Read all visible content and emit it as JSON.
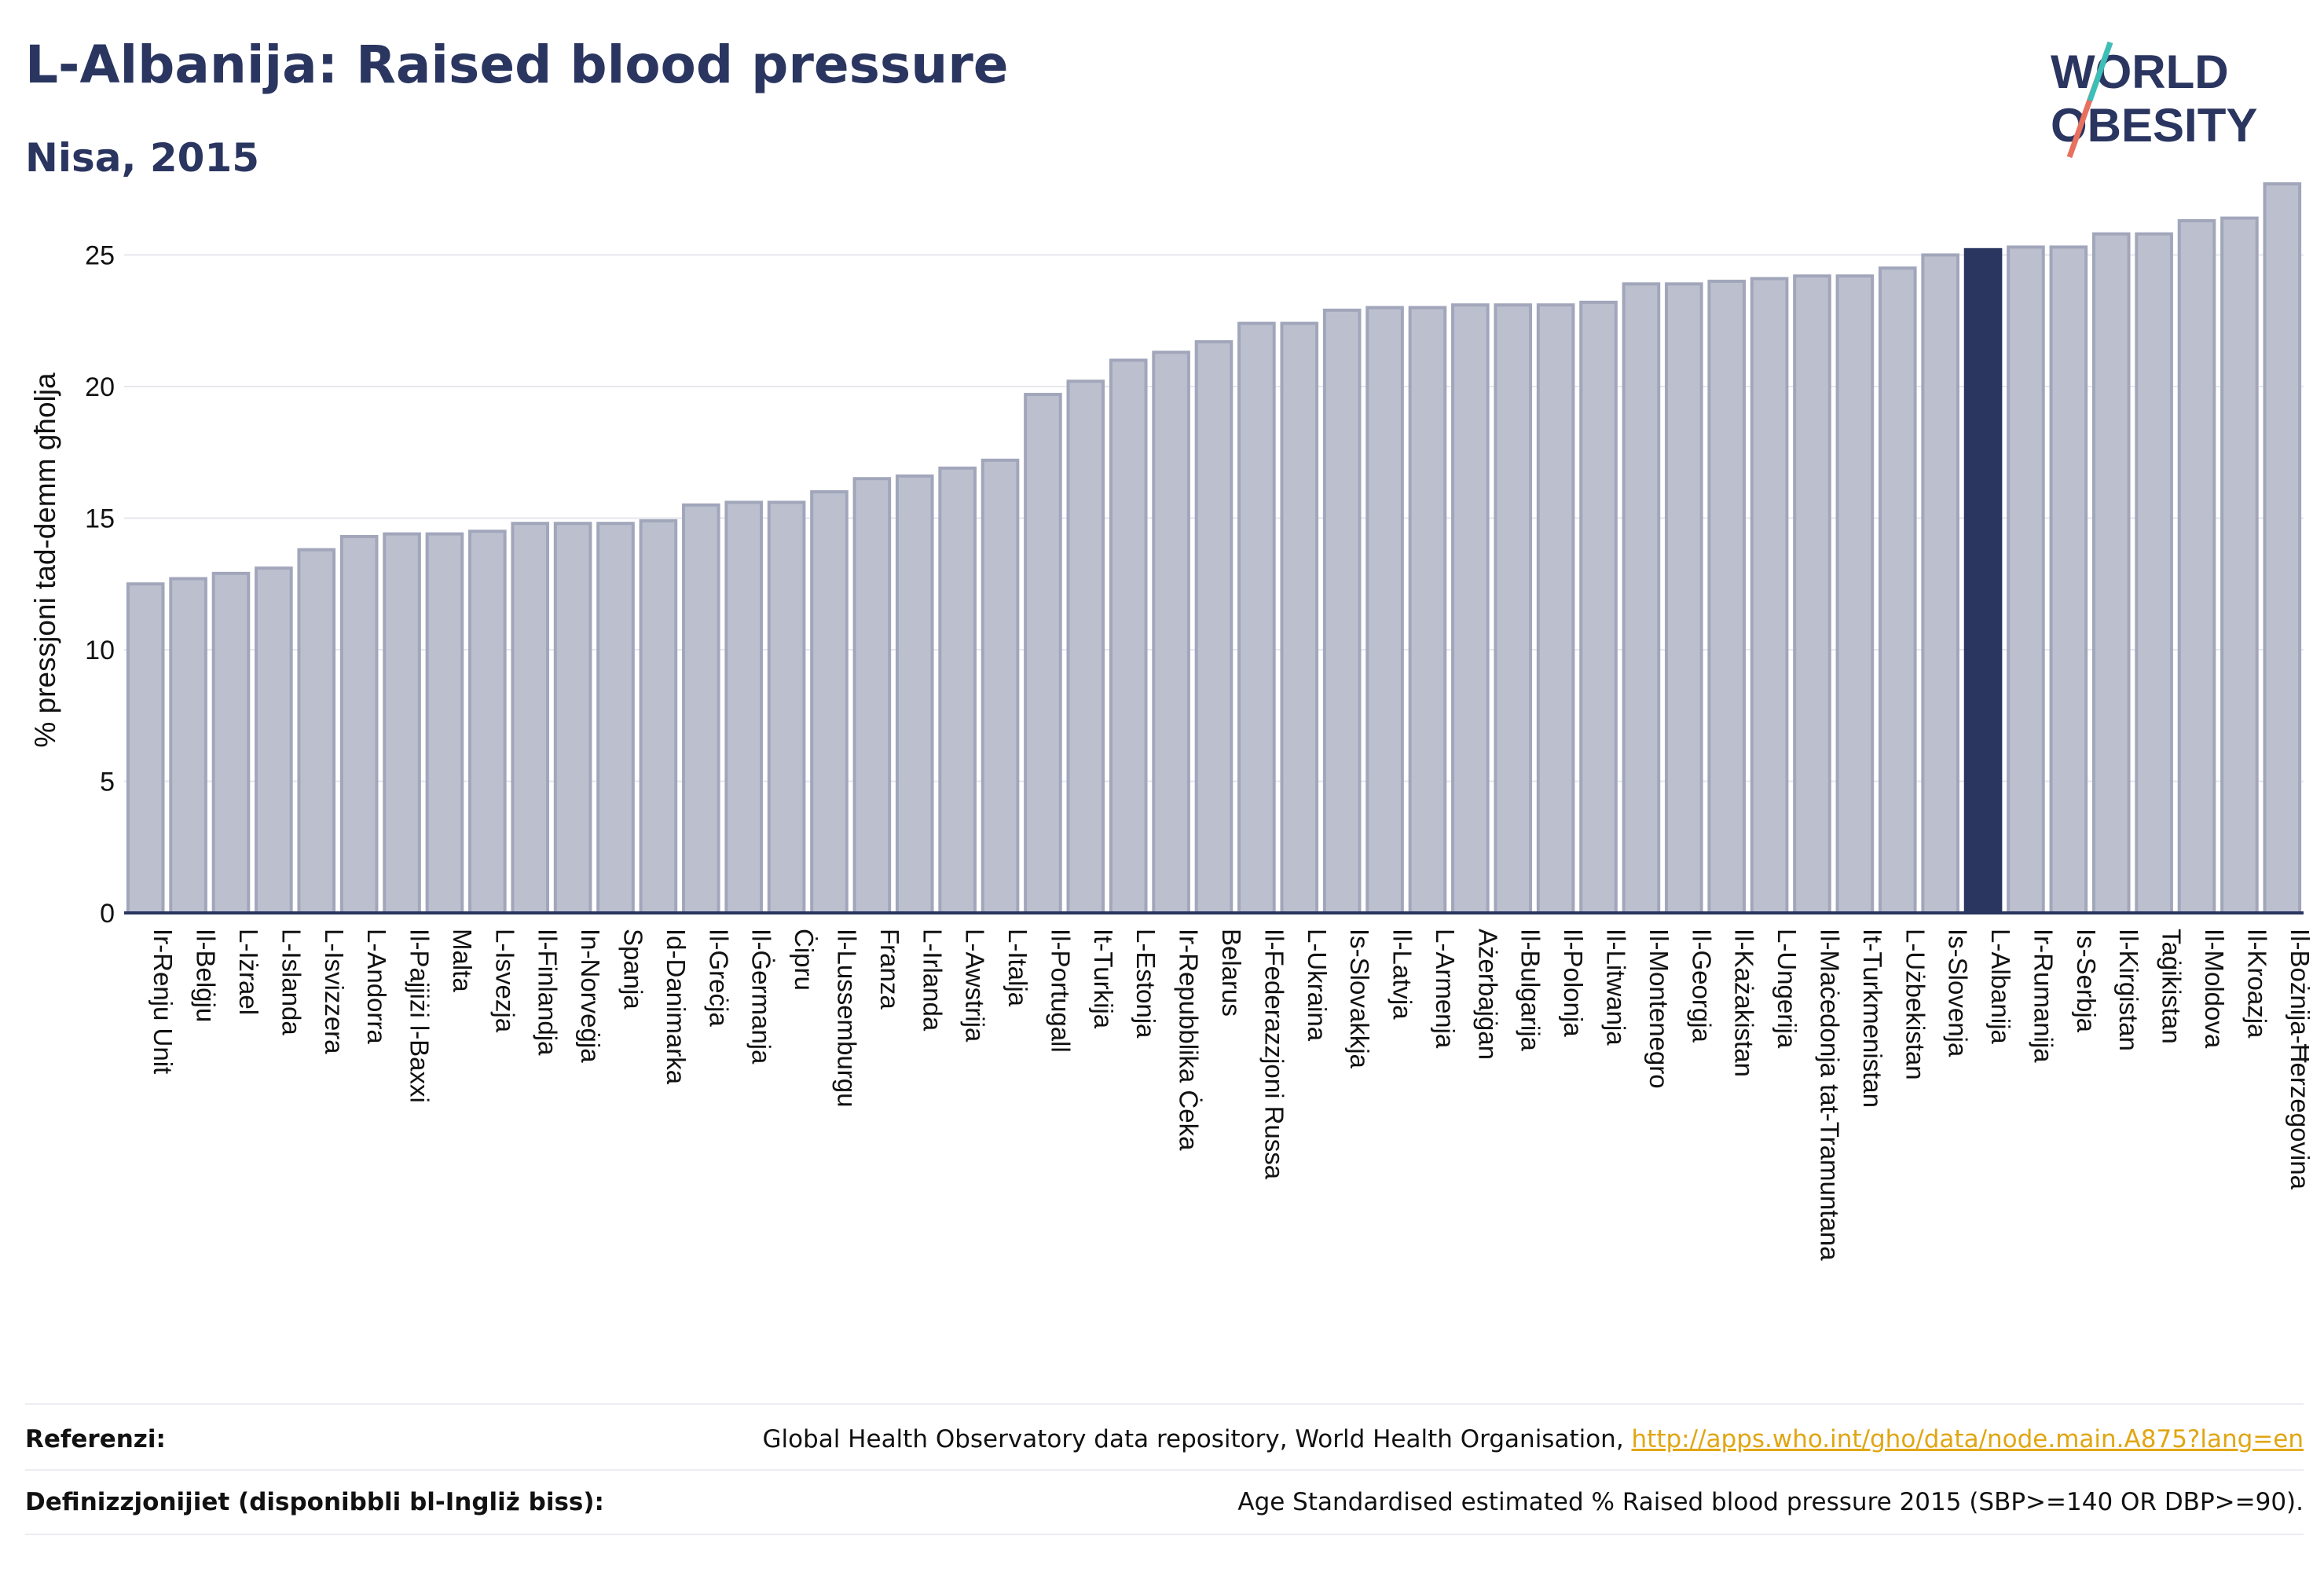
{
  "header": {
    "title": "L-Albanija: Raised blood pressure",
    "subtitle": "Nisa, 2015"
  },
  "logo": {
    "line1": "WORLD",
    "line2": "OBESITY"
  },
  "colors": {
    "bar": "#bcc0ce",
    "bar_stroke": "#a1a6bb",
    "highlight": "#2a3560",
    "axis": "#2a3560",
    "grid": "#e6e7ee"
  },
  "chart_data": {
    "type": "bar",
    "ylabel": "% pressjoni tad-demm għolja",
    "ylim": [
      0,
      28
    ],
    "yticks": [
      0,
      5,
      10,
      15,
      20,
      25
    ],
    "grid": true,
    "highlight": "L-Albanija",
    "categories": [
      "Ir-Renju Unit",
      "Il-Belġju",
      "L-Iżrael",
      "L-Islanda",
      "L-Isvizzera",
      "L-Andorra",
      "Il-Pajjiżi l-Baxxi",
      "Malta",
      "L-Isvezja",
      "Il-Finlandja",
      "In-Norveġja",
      "Spanja",
      "Id-Danimarka",
      "Il-Greċja",
      "Il-Ġermanja",
      "Ċipru",
      "Il-Lussemburgu",
      "Franza",
      "L-Irlanda",
      "L-Awstrija",
      "L-Italja",
      "Il-Portugall",
      "It-Turkija",
      "L-Estonja",
      "Ir-Repubblika Ċeka",
      "Belarus",
      "Il-Federazzjoni Russa",
      "L-Ukraina",
      "Is-Slovakkja",
      "Il-Latvja",
      "L-Armenja",
      "Ażerbajġan",
      "Il-Bulgarija",
      "Il-Polonja",
      "Il-Litwanja",
      "Il-Montenegro",
      "Il-Georgja",
      "Il-Każakistan",
      "L-Ungerija",
      "Il-Maċedonja tat-Tramuntana",
      "It-Turkmenistan",
      "L-Użbekistan",
      "Is-Slovenja",
      "L-Albanija",
      "Ir-Rumanija",
      "Is-Serbja",
      "Il-Kirgistan",
      "Taġikistan",
      "Il-Moldova",
      "Il-Kroazja",
      "Il-Bożnija-Ħerzegovina"
    ],
    "values": [
      12.5,
      12.7,
      12.9,
      13.1,
      13.8,
      14.3,
      14.4,
      14.4,
      14.5,
      14.8,
      14.8,
      14.8,
      14.9,
      15.5,
      15.6,
      15.6,
      16.0,
      16.5,
      16.6,
      16.9,
      17.2,
      19.7,
      20.2,
      21.0,
      21.3,
      21.7,
      22.4,
      22.4,
      22.9,
      23.0,
      23.0,
      23.1,
      23.1,
      23.1,
      23.2,
      23.9,
      23.9,
      24.0,
      24.1,
      24.2,
      24.2,
      24.5,
      25.0,
      25.2,
      25.3,
      25.3,
      25.8,
      25.8,
      26.3,
      26.4,
      27.7
    ]
  },
  "footer": {
    "references_label": "Referenzi:",
    "references_text": "Global Health Observatory data repository, World Health Organisation, ",
    "references_link": "http://apps.who.int/gho/data/node.main.A875?lang=en",
    "definitions_label": "Definizzjonijiet (disponibbli bl-Ingliż biss):",
    "definitions_text": "Age Standardised estimated % Raised blood pressure 2015 (SBP>=140 OR DBP>=90)."
  }
}
